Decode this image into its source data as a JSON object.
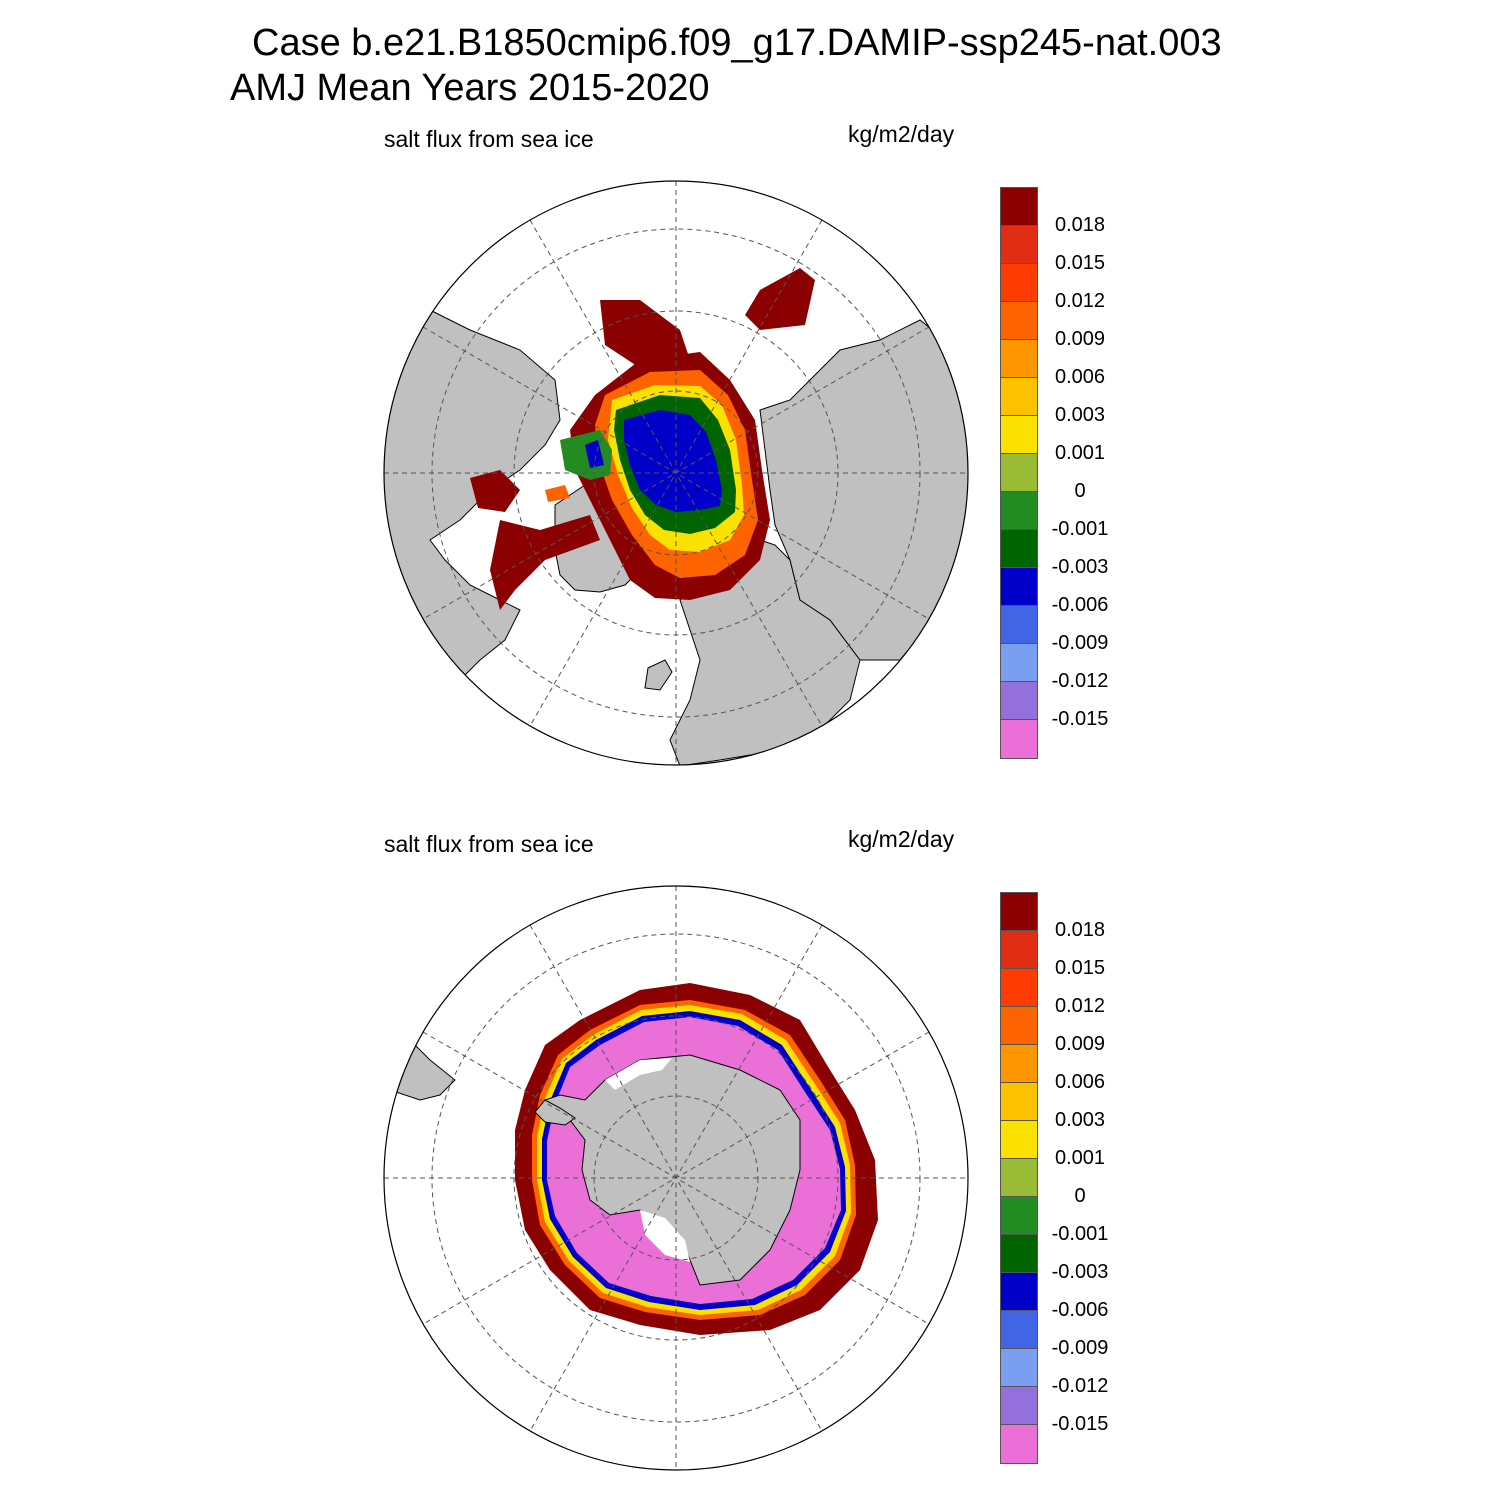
{
  "title_line1": "Case b.e21.B1850cmip6.f09_g17.DAMIP-ssp245-nat.003",
  "title_line2": "AMJ Mean   Years 2015-2020",
  "colors": {
    "land": "#c0c0c0",
    "boundary": "#000000",
    "grid": "#555555"
  },
  "legend_colors": [
    "#ea70d8",
    "#9370db",
    "#7a9ef2",
    "#4265e6",
    "#0000c8",
    "#006400",
    "#228b22",
    "#9abb35",
    "#fbe100",
    "#fcc200",
    "#fd9600",
    "#fd6400",
    "#fc3c00",
    "#e02d14",
    "#8b0000"
  ],
  "legend_labels": [
    "-0.015",
    "-0.012",
    "-0.009",
    "-0.006",
    "-0.003",
    "-0.001",
    "0",
    "0.001",
    "0.003",
    "0.006",
    "0.009",
    "0.012",
    "0.015",
    "0.018"
  ],
  "panels": [
    {
      "id": "north",
      "left_label": "salt flux from sea ice",
      "right_label": "kg/m2/day",
      "hemisphere": "Northern polar stereographic"
    },
    {
      "id": "south",
      "left_label": "salt flux from sea ice",
      "right_label": "kg/m2/day",
      "hemisphere": "Southern polar stereographic"
    }
  ]
}
